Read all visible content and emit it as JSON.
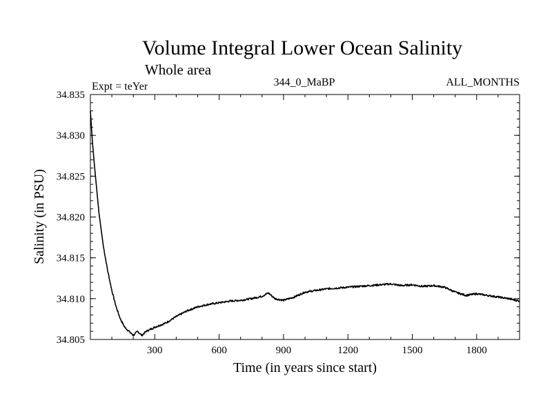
{
  "chart_data": {
    "type": "line",
    "title": "Volume Integral Lower Ocean Salinity",
    "subtitle": "Whole area",
    "experiment_label": "Expt = teYer",
    "center_label": "344_0_MaBP",
    "right_label": "ALL_MONTHS",
    "xlabel": "Time (in years since start)",
    "ylabel": "Salinity (in PSU)",
    "xlim": [
      0,
      2000
    ],
    "ylim": [
      34.805,
      34.835
    ],
    "x_ticks": [
      300,
      600,
      900,
      1200,
      1500,
      1800
    ],
    "y_ticks": [
      34.805,
      34.81,
      34.815,
      34.82,
      34.825,
      34.83,
      34.835
    ],
    "y_tick_labels": [
      "34.805",
      "34.810",
      "34.815",
      "34.820",
      "34.825",
      "34.830",
      "34.835"
    ],
    "grid": false,
    "series": [
      {
        "name": "Salinity",
        "x": [
          0,
          10,
          20,
          40,
          60,
          80,
          100,
          120,
          140,
          160,
          180,
          200,
          220,
          240,
          260,
          300,
          350,
          400,
          450,
          500,
          550,
          600,
          650,
          700,
          750,
          800,
          830,
          860,
          900,
          950,
          1000,
          1050,
          1100,
          1150,
          1200,
          1250,
          1300,
          1350,
          1400,
          1450,
          1500,
          1550,
          1600,
          1650,
          1700,
          1750,
          1800,
          1850,
          1900,
          1950,
          2000
        ],
        "values": [
          34.833,
          34.829,
          34.826,
          34.8205,
          34.8165,
          34.8135,
          34.811,
          34.809,
          34.8075,
          34.8065,
          34.806,
          34.8055,
          34.806,
          34.8055,
          34.806,
          34.8065,
          34.807,
          34.8078,
          34.8085,
          34.809,
          34.8093,
          34.8095,
          34.8097,
          34.8098,
          34.81,
          34.8103,
          34.8107,
          34.81,
          34.8098,
          34.8102,
          34.8108,
          34.811,
          34.8112,
          34.8113,
          34.8114,
          34.8115,
          34.8116,
          34.8117,
          34.8118,
          34.8116,
          34.8117,
          34.8115,
          34.8116,
          34.8114,
          34.8108,
          34.8104,
          34.8106,
          34.8104,
          34.8102,
          34.81,
          34.8097
        ]
      }
    ]
  }
}
